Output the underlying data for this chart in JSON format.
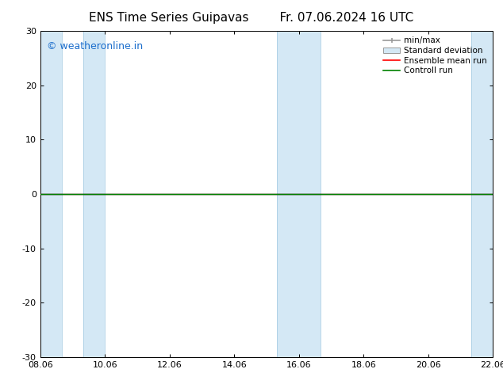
{
  "title_left": "ENS Time Series Guipavas",
  "title_right": "Fr. 07.06.2024 16 UTC",
  "watermark": "© weatheronline.in",
  "watermark_color": "#1a6dcc",
  "xtick_labels": [
    "08.06",
    "10.06",
    "12.06",
    "14.06",
    "16.06",
    "18.06",
    "20.06",
    "22.06"
  ],
  "xtick_positions": [
    0,
    2,
    4,
    6,
    8,
    10,
    12,
    14
  ],
  "ylim": [
    -30,
    30
  ],
  "ytick_labels": [
    "-30",
    "-20",
    "-10",
    "0",
    "10",
    "20",
    "30"
  ],
  "ytick_positions": [
    -30,
    -20,
    -10,
    0,
    10,
    20,
    30
  ],
  "background_color": "#ffffff",
  "plot_bg_color": "#ffffff",
  "shaded_color": "#d4e8f5",
  "band_regions": [
    [
      0.0,
      0.67
    ],
    [
      1.33,
      2.0
    ],
    [
      7.33,
      8.67
    ],
    [
      13.33,
      14.0
    ]
  ],
  "zero_line_color": "#000000",
  "ensemble_mean_color": "#ff0000",
  "control_run_color": "#008000",
  "title_fontsize": 11,
  "tick_fontsize": 8,
  "watermark_fontsize": 9
}
